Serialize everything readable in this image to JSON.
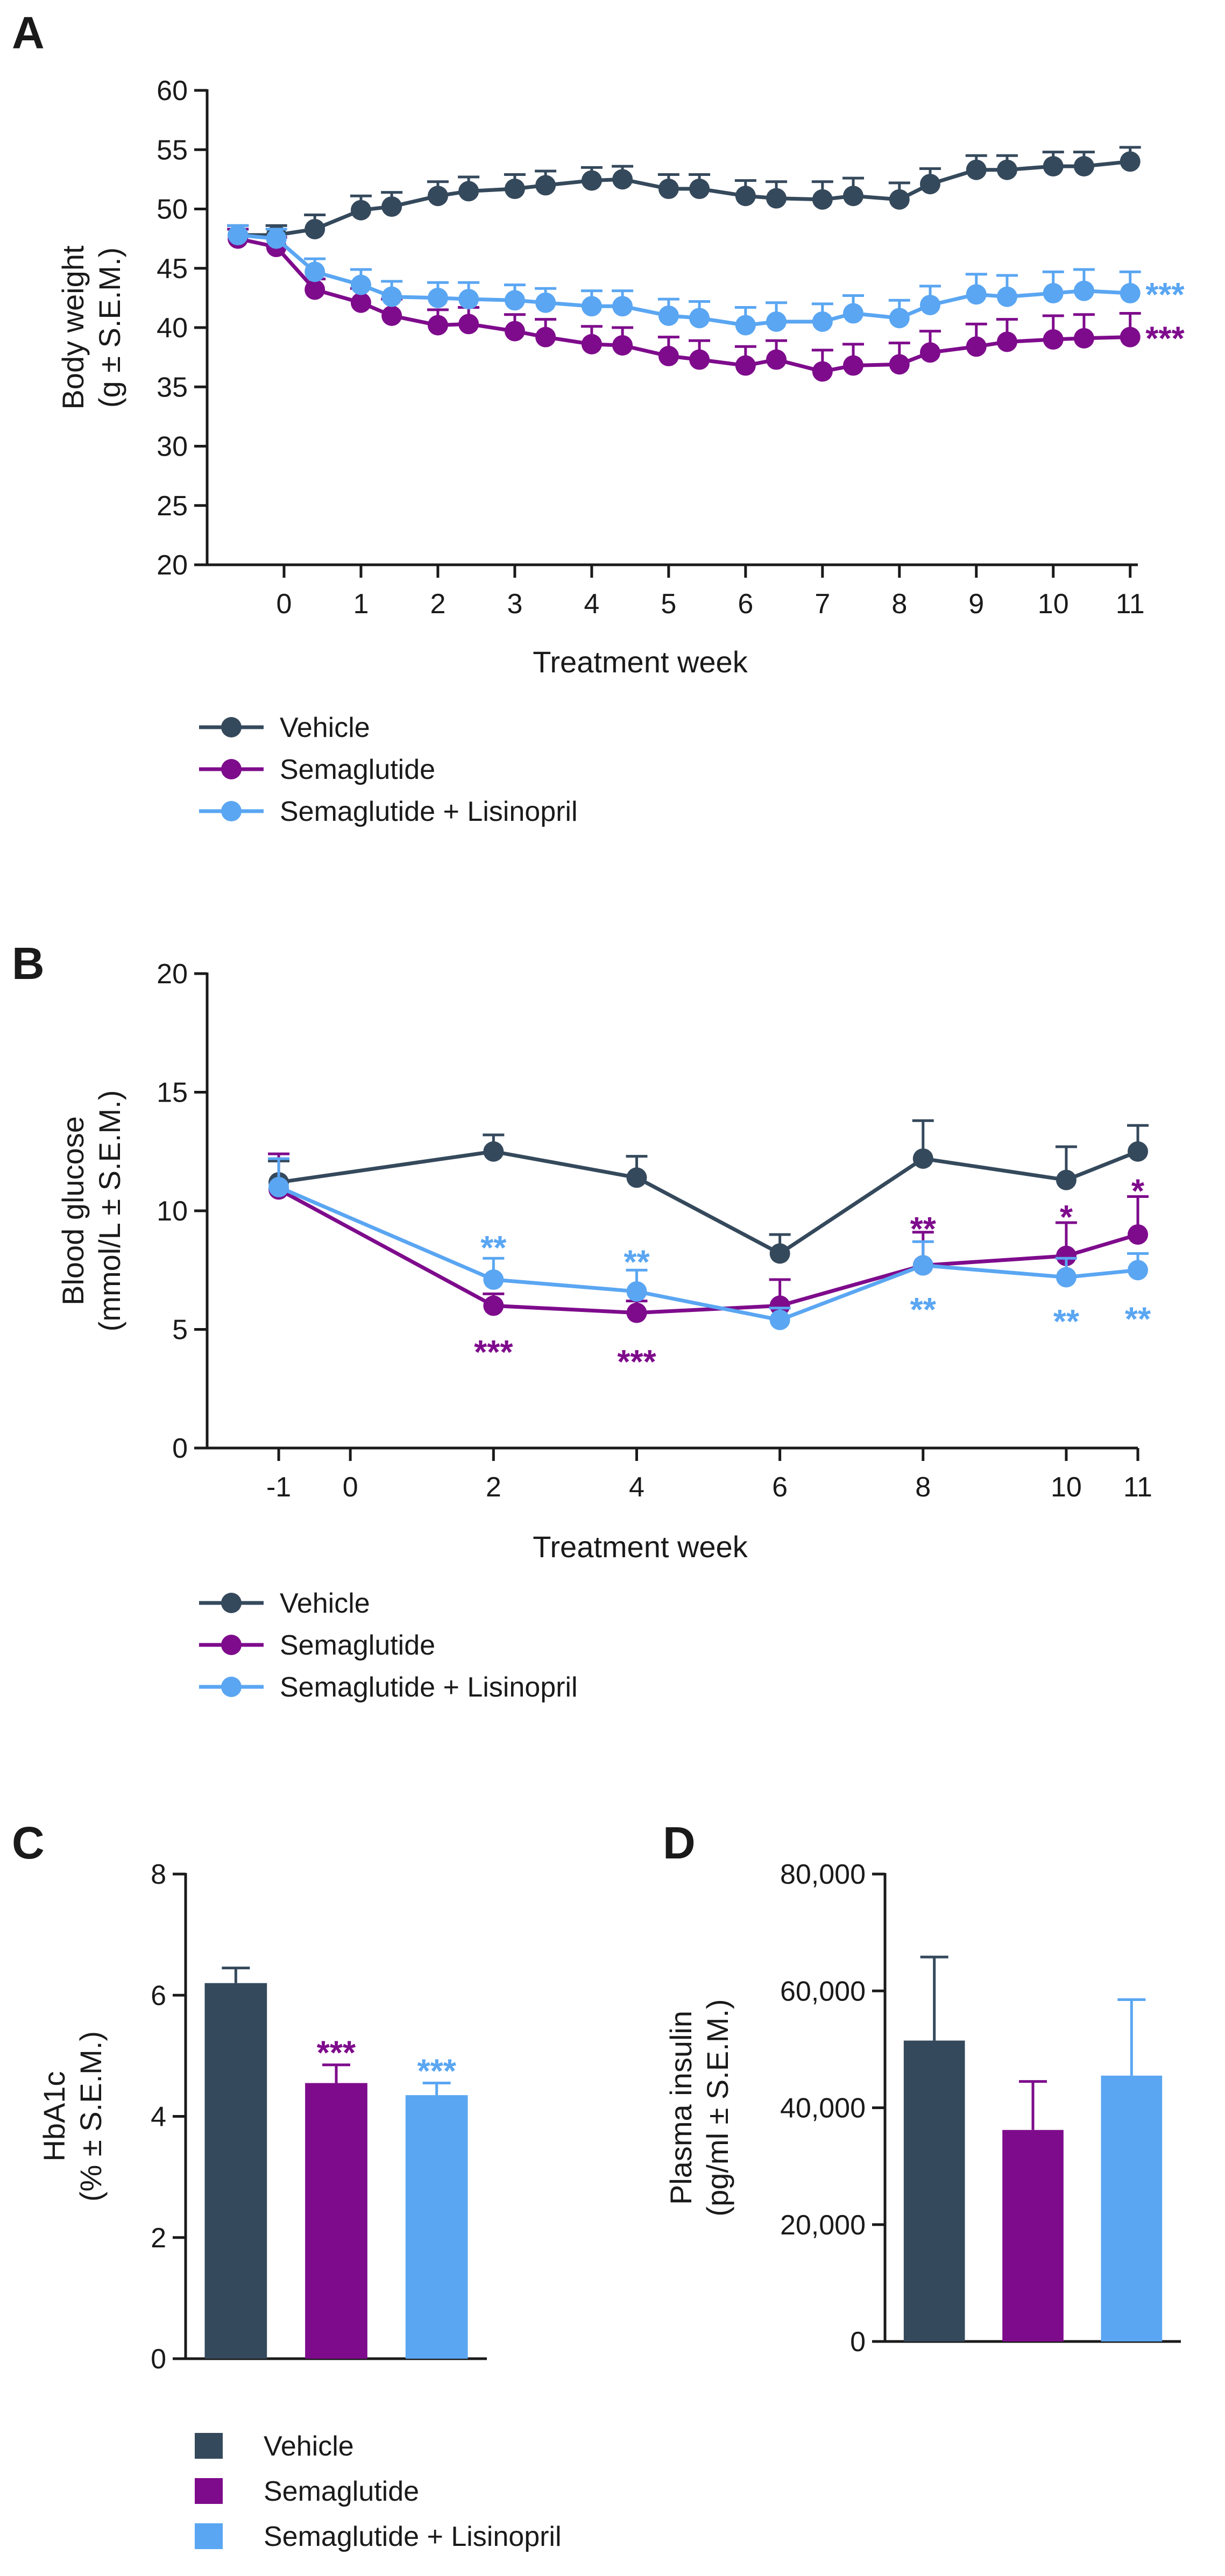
{
  "colors": {
    "vehicle": "#35495c",
    "sema": "#7e0b8c",
    "lisi": "#5aa6f2",
    "axis": "#1a1a1a"
  },
  "chart_data": [
    {
      "panel": "A",
      "type": "line",
      "xlabel": "Treatment week",
      "ylabel_line1": "Body weight",
      "ylabel_line2": "(g ± S.E.M.)",
      "xlim": [
        -1,
        11.1
      ],
      "ylim": [
        20,
        60
      ],
      "xticks": [
        0,
        1,
        2,
        3,
        4,
        5,
        6,
        7,
        8,
        9,
        10,
        11
      ],
      "xtick_labels": [
        "0",
        "1",
        "2",
        "3",
        "4",
        "5",
        "6",
        "7",
        "8",
        "9",
        "10",
        "11"
      ],
      "yticks": [
        20,
        25,
        30,
        35,
        40,
        45,
        50,
        55,
        60
      ],
      "ytick_labels": [
        "20",
        "25",
        "30",
        "35",
        "40",
        "45",
        "50",
        "55",
        "60"
      ],
      "x": [
        -0.6,
        -0.1,
        0.4,
        1,
        1.4,
        2,
        2.4,
        3,
        3.4,
        4,
        4.4,
        5,
        5.4,
        6,
        6.4,
        7,
        7.4,
        8,
        8.4,
        9,
        9.4,
        10,
        10.4,
        11
      ],
      "series": [
        {
          "key": "vehicle",
          "name": "Vehicle",
          "values": [
            47.8,
            47.8,
            48.3,
            49.9,
            50.2,
            51.1,
            51.5,
            51.7,
            52.0,
            52.4,
            52.5,
            51.7,
            51.7,
            51.1,
            50.9,
            50.8,
            51.1,
            50.8,
            52.1,
            53.3,
            53.3,
            53.6,
            53.6,
            54.0
          ],
          "errors": [
            0.8,
            0.8,
            1.2,
            1.2,
            1.2,
            1.2,
            1.2,
            1.2,
            1.2,
            1.1,
            1.1,
            1.2,
            1.2,
            1.3,
            1.4,
            1.5,
            1.5,
            1.4,
            1.3,
            1.2,
            1.2,
            1.2,
            1.2,
            1.2
          ]
        },
        {
          "key": "sema",
          "name": "Semaglutide",
          "values": [
            47.5,
            46.8,
            43.2,
            42.1,
            41.0,
            40.2,
            40.3,
            39.7,
            39.2,
            38.6,
            38.5,
            37.6,
            37.3,
            36.8,
            37.3,
            36.3,
            36.8,
            36.9,
            37.9,
            38.4,
            38.8,
            39.0,
            39.1,
            39.2
          ],
          "errors": [
            0.8,
            0.8,
            0.9,
            1.2,
            1.4,
            1.3,
            1.4,
            1.4,
            1.5,
            1.5,
            1.5,
            1.6,
            1.6,
            1.6,
            1.6,
            1.8,
            1.8,
            1.8,
            1.8,
            1.9,
            1.9,
            2.0,
            2.0,
            2.0
          ]
        },
        {
          "key": "lisi",
          "name": "Semaglutide + Lisinopril",
          "values": [
            47.8,
            47.5,
            44.7,
            43.6,
            42.6,
            42.5,
            42.4,
            42.3,
            42.1,
            41.8,
            41.8,
            41.0,
            40.8,
            40.2,
            40.5,
            40.5,
            41.2,
            40.8,
            41.9,
            42.8,
            42.6,
            42.9,
            43.1,
            42.9
          ],
          "errors": [
            0.8,
            0.8,
            1.1,
            1.3,
            1.3,
            1.3,
            1.4,
            1.3,
            1.2,
            1.3,
            1.3,
            1.4,
            1.4,
            1.5,
            1.6,
            1.5,
            1.5,
            1.5,
            1.6,
            1.7,
            1.8,
            1.8,
            1.8,
            1.8
          ]
        }
      ],
      "annotations": [
        {
          "text": "***",
          "x": 11.2,
          "y": 42.9,
          "series": "lisi"
        },
        {
          "text": "***",
          "x": 11.2,
          "y": 39.2,
          "series": "sema"
        }
      ]
    },
    {
      "panel": "B",
      "type": "line",
      "xlabel": "Treatment week",
      "ylabel_line1": "Blood glucose",
      "ylabel_line2": "(mmol/L ± S.E.M.)",
      "xlim": [
        -2,
        11
      ],
      "ylim": [
        0,
        20
      ],
      "xticks": [
        -1,
        0,
        2,
        4,
        6,
        8,
        10,
        11
      ],
      "xtick_labels": [
        "-1",
        "0",
        "2",
        "4",
        "6",
        "8",
        "10",
        "11"
      ],
      "yticks": [
        0,
        5,
        10,
        15,
        20
      ],
      "ytick_labels": [
        "0",
        "5",
        "10",
        "15",
        "20"
      ],
      "x": [
        -1,
        2,
        4,
        6,
        8,
        10,
        11
      ],
      "series": [
        {
          "key": "vehicle",
          "name": "Vehicle",
          "values": [
            11.2,
            12.5,
            11.4,
            8.2,
            12.2,
            11.3,
            12.5
          ],
          "errors": [
            0.9,
            0.7,
            0.9,
            0.8,
            1.6,
            1.4,
            1.1
          ]
        },
        {
          "key": "sema",
          "name": "Semaglutide",
          "values": [
            10.9,
            6.0,
            5.7,
            6.0,
            7.7,
            8.1,
            9.0
          ],
          "errors": [
            1.5,
            0.5,
            0.5,
            1.1,
            1.4,
            1.4,
            1.6
          ]
        },
        {
          "key": "lisi",
          "name": "Semaglutide + Lisinopril",
          "values": [
            11.0,
            7.1,
            6.6,
            5.4,
            7.7,
            7.2,
            7.5
          ],
          "errors": [
            1.2,
            0.9,
            0.9,
            0.5,
            1.0,
            0.8,
            0.7
          ]
        }
      ],
      "annotations": [
        {
          "text": "**",
          "x": 2,
          "y": 8.5,
          "series": "lisi"
        },
        {
          "text": "***",
          "x": 2,
          "y": 4.1,
          "series": "sema"
        },
        {
          "text": "**",
          "x": 4,
          "y": 7.9,
          "series": "lisi"
        },
        {
          "text": "***",
          "x": 4,
          "y": 3.7,
          "series": "sema"
        },
        {
          "text": "**",
          "x": 8,
          "y": 9.3,
          "series": "sema"
        },
        {
          "text": "**",
          "x": 8,
          "y": 5.9,
          "series": "lisi"
        },
        {
          "text": "*",
          "x": 10,
          "y": 9.8,
          "series": "sema"
        },
        {
          "text": "**",
          "x": 10,
          "y": 5.4,
          "series": "lisi"
        },
        {
          "text": "*",
          "x": 11,
          "y": 10.9,
          "series": "sema"
        },
        {
          "text": "**",
          "x": 11,
          "y": 5.5,
          "series": "lisi"
        }
      ]
    },
    {
      "panel": "C",
      "type": "bar",
      "ylabel_line1": "HbA1c",
      "ylabel_line2": "(% ± S.E.M.)",
      "ylim": [
        0,
        8
      ],
      "yticks": [
        0,
        2,
        4,
        6,
        8
      ],
      "ytick_labels": [
        "0",
        "2",
        "4",
        "6",
        "8"
      ],
      "categories": [
        "Vehicle",
        "Semaglutide",
        "Semaglutide + Lisinopril"
      ],
      "keys": [
        "vehicle",
        "sema",
        "lisi"
      ],
      "values": [
        6.2,
        4.55,
        4.35
      ],
      "errors": [
        0.25,
        0.3,
        0.2
      ],
      "annotations": [
        {
          "text": "***",
          "bar": 1,
          "y": 4.95,
          "series": "sema"
        },
        {
          "text": "***",
          "bar": 2,
          "y": 4.65,
          "series": "lisi"
        }
      ]
    },
    {
      "panel": "D",
      "type": "bar",
      "ylabel_line1": "Plasma insulin",
      "ylabel_line2": "(pg/ml ± S.E.M.)",
      "ylim": [
        0,
        80000
      ],
      "yticks": [
        0,
        20000,
        40000,
        60000,
        80000
      ],
      "ytick_labels": [
        "0",
        "20,000",
        "40,000",
        "60,000",
        "80,000"
      ],
      "categories": [
        "Vehicle",
        "Semaglutide",
        "Semaglutide + Lisinopril"
      ],
      "keys": [
        "vehicle",
        "sema",
        "lisi"
      ],
      "values": [
        51500,
        36200,
        45500
      ],
      "errors": [
        14300,
        8300,
        13000
      ],
      "annotations": []
    }
  ],
  "legend_lines": {
    "items": [
      {
        "key": "vehicle",
        "label": "Vehicle"
      },
      {
        "key": "sema",
        "label": "Semaglutide"
      },
      {
        "key": "lisi",
        "label": "Semaglutide + Lisinopril"
      }
    ]
  },
  "legend_bars": {
    "items": [
      {
        "key": "vehicle",
        "label": "Vehicle"
      },
      {
        "key": "sema",
        "label": "Semaglutide"
      },
      {
        "key": "lisi",
        "label": "Semaglutide + Lisinopril"
      }
    ]
  }
}
